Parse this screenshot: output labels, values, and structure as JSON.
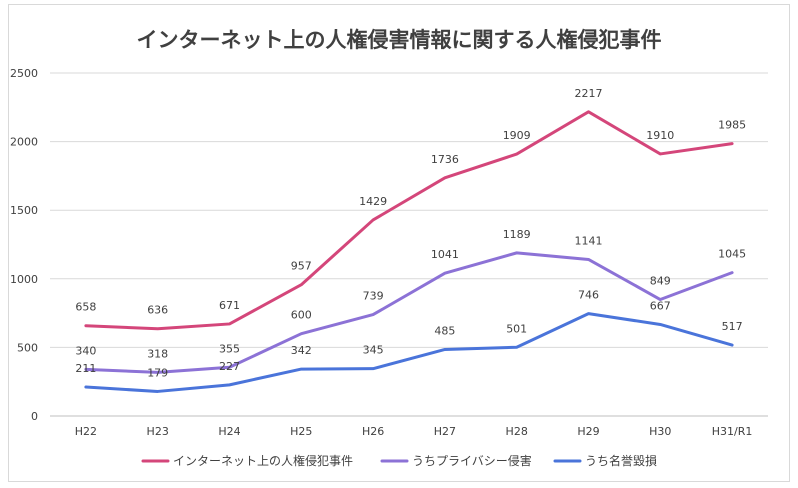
{
  "chart_data": {
    "type": "line",
    "title": "インターネット上の人権侵害情報に関する人権侵犯事件",
    "categories": [
      "H22",
      "H23",
      "H24",
      "H25",
      "H26",
      "H27",
      "H28",
      "H29",
      "H30",
      "H31/R1"
    ],
    "ylim": [
      0,
      2500
    ],
    "yticks": [
      0,
      500,
      1000,
      1500,
      2000,
      2500
    ],
    "xlabel": "",
    "ylabel": "",
    "grid": true,
    "legend_position": "bottom",
    "series": [
      {
        "name": "インターネット上の人権侵犯事件",
        "color": "#d4467a",
        "values": [
          658,
          636,
          671,
          957,
          1429,
          1736,
          1909,
          2217,
          1910,
          1985
        ]
      },
      {
        "name": "うちプライバシー侵害",
        "color": "#8c72d6",
        "values": [
          340,
          318,
          355,
          600,
          739,
          1041,
          1189,
          1141,
          849,
          1045
        ]
      },
      {
        "name": "うち名誉毀損",
        "color": "#4a74da",
        "values": [
          211,
          179,
          227,
          342,
          345,
          485,
          501,
          746,
          667,
          517
        ]
      }
    ]
  }
}
